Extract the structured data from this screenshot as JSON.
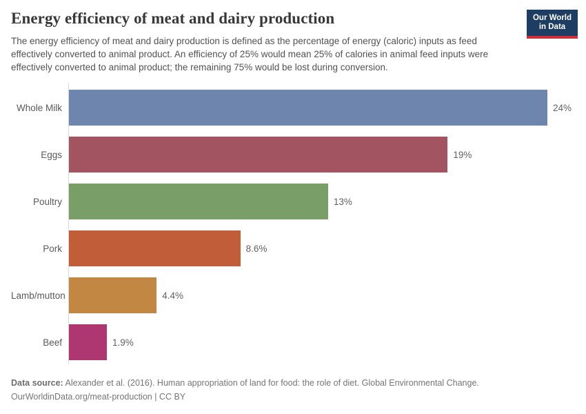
{
  "header": {
    "title": "Energy efficiency of meat and dairy production",
    "subtitle": "The energy efficiency of meat and dairy production is defined as the percentage of energy (caloric) inputs as feed effectively converted to animal product. An efficiency of 25% would mean 25% of calories in animal feed inputs were effectively converted to animal product; the remaining 75% would be lost during conversion.",
    "logo": {
      "line1": "Our World",
      "line2": "in Data"
    }
  },
  "chart_data": {
    "type": "bar",
    "orientation": "horizontal",
    "title": "Energy efficiency of meat and dairy production",
    "categories": [
      "Whole Milk",
      "Eggs",
      "Poultry",
      "Pork",
      "Lamb/mutton",
      "Beef"
    ],
    "values": [
      24,
      19,
      13,
      8.6,
      4.4,
      1.9
    ],
    "value_labels": [
      "24%",
      "19%",
      "13%",
      "8.6%",
      "4.4%",
      "1.9%"
    ],
    "unit": "%",
    "bar_colors": [
      "#6e86ae",
      "#a25560",
      "#7a9e68",
      "#c15d39",
      "#c28843",
      "#ae3671"
    ],
    "xlim": [
      0,
      24
    ],
    "grid": false,
    "legend": false
  },
  "footer": {
    "source_label": "Data source:",
    "source_text": " Alexander et al. (2016). Human appropriation of land for food: the role of diet. Global Environmental Change.",
    "link_text": "OurWorldinData.org/meat-production",
    "license_text": " | CC BY"
  },
  "colors": {
    "axis_line": "#d9d9d9",
    "title_text": "#383838",
    "subtitle_text": "#515151",
    "label_text": "#595959",
    "value_text": "#616161",
    "footer_text": "#757575",
    "logo_background": "#1d3d63",
    "logo_accent_red": "#cd303b",
    "background": "#ffffff"
  }
}
